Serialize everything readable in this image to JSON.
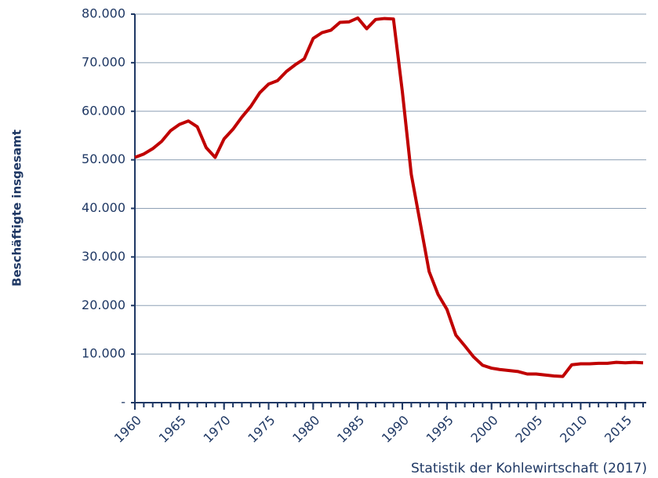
{
  "chart_data": {
    "type": "line",
    "y_label": "Beschäftigte insgesamt",
    "source": "Statistik der Kohlewirtschaft (2017)",
    "x": [
      1960,
      1961,
      1962,
      1963,
      1964,
      1965,
      1966,
      1967,
      1968,
      1969,
      1970,
      1971,
      1972,
      1973,
      1974,
      1975,
      1976,
      1977,
      1978,
      1979,
      1980,
      1981,
      1982,
      1983,
      1984,
      1985,
      1986,
      1987,
      1988,
      1989,
      1990,
      1991,
      1992,
      1993,
      1994,
      1995,
      1996,
      1997,
      1998,
      1999,
      2000,
      2001,
      2002,
      2003,
      2004,
      2005,
      2006,
      2007,
      2008,
      2009,
      2010,
      2011,
      2012,
      2013,
      2014,
      2015,
      2016,
      2017
    ],
    "series": [
      {
        "color": "#c00000",
        "values": [
          50500,
          51200,
          52300,
          53800,
          56000,
          57300,
          58000,
          56800,
          52500,
          50500,
          54300,
          56300,
          58800,
          61000,
          63800,
          65600,
          66300,
          68200,
          69600,
          70800,
          75000,
          76200,
          76700,
          78300,
          78400,
          79200,
          77000,
          78900,
          79100,
          79000,
          64000,
          47000,
          37000,
          27000,
          22300,
          19200,
          13900,
          11700,
          9400,
          7700,
          7100,
          6800,
          6600,
          6400,
          5900,
          5900,
          5700,
          5500,
          5400,
          7800,
          8000,
          8000,
          8100,
          8100,
          8300,
          8200,
          8300,
          8200
        ]
      }
    ],
    "xlim": [
      1960,
      2017
    ],
    "xticks": [
      1960,
      1965,
      1970,
      1975,
      1980,
      1985,
      1990,
      1995,
      2000,
      2005,
      2010,
      2015
    ],
    "ylim": [
      0,
      80000
    ],
    "yticks": [
      {
        "value": 0,
        "label": "-"
      },
      {
        "value": 10000,
        "label": "10.000"
      },
      {
        "value": 20000,
        "label": "20.000"
      },
      {
        "value": 30000,
        "label": "30.000"
      },
      {
        "value": 40000,
        "label": "40.000"
      },
      {
        "value": 50000,
        "label": "50.000"
      },
      {
        "value": 60000,
        "label": "60.000"
      },
      {
        "value": 70000,
        "label": "70.000"
      },
      {
        "value": 80000,
        "label": "80.000"
      }
    ],
    "grid": true
  }
}
